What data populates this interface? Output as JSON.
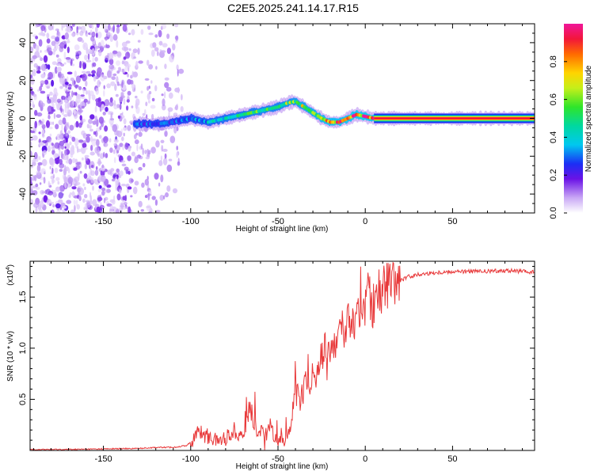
{
  "title": "C2E5.2025.241.14.17.R15",
  "chart_data": [
    {
      "type": "heatmap",
      "name": "spectrogram",
      "xlabel": "Height of straight line (km)",
      "ylabel": "Frequency (Hz)",
      "xlim": [
        -192,
        97
      ],
      "ylim": [
        -50,
        50
      ],
      "xticks": [
        -150,
        -100,
        -50,
        0,
        50
      ],
      "yticks": [
        -40,
        -20,
        0,
        20,
        40
      ],
      "colorbar": {
        "label": "Normalized spectral amplitude",
        "range": [
          0,
          1
        ],
        "ticks": [
          "0.0",
          "0.2",
          "0.4",
          "0.6",
          "0.8"
        ],
        "tick_values": [
          0,
          0.2,
          0.4,
          0.6,
          0.8
        ]
      },
      "ridge": {
        "x": [
          -130,
          -120,
          -110,
          -100,
          -90,
          -80,
          -70,
          -60,
          -50,
          -45,
          -40,
          -35,
          -30,
          -25,
          -20,
          -15,
          -10,
          -5,
          0,
          5,
          97
        ],
        "frequency_hz": [
          -3,
          -3,
          -2,
          0,
          -2,
          0,
          2,
          4,
          6,
          8,
          9,
          6,
          3,
          0,
          -2,
          -2,
          0,
          2,
          1,
          0,
          0
        ],
        "amplitude": [
          0.3,
          0.3,
          0.3,
          0.35,
          0.45,
          0.5,
          0.55,
          0.6,
          0.6,
          0.65,
          0.7,
          0.75,
          0.8,
          0.85,
          0.9,
          0.9,
          0.92,
          0.95,
          0.98,
          1.0,
          1.0
        ]
      },
      "noise_region_x": [
        -192,
        -105
      ]
    },
    {
      "type": "line",
      "name": "snr",
      "xlabel": "Height of straight line (km)",
      "ylabel": "SNR (10 * v/v)",
      "scale_note_base": "(x10",
      "scale_note_exp": "4",
      "scale_note_end": ")",
      "xlim": [
        -192,
        97
      ],
      "ylim": [
        0,
        1.85
      ],
      "xticks": [
        -150,
        -100,
        -50,
        0,
        50
      ],
      "yticks": [
        0.5,
        1.0,
        1.5
      ],
      "ytick_labels": [
        "0.5",
        "1.0",
        "1.5"
      ],
      "color": "#e8393a",
      "x": [
        -192,
        -170,
        -150,
        -130,
        -120,
        -110,
        -102,
        -98,
        -95,
        -92,
        -88,
        -85,
        -80,
        -75,
        -70,
        -66,
        -63,
        -60,
        -57,
        -54,
        -50,
        -46,
        -42,
        -40,
        -38,
        -36,
        -34,
        -32,
        -30,
        -28,
        -25,
        -22,
        -20,
        -18,
        -15,
        -12,
        -10,
        -8,
        -6,
        -4,
        -2,
        0,
        2,
        4,
        6,
        8,
        10,
        12,
        15,
        20,
        25,
        30,
        35,
        40,
        50,
        60,
        70,
        80,
        90,
        95,
        97
      ],
      "y": [
        0.01,
        0.01,
        0.015,
        0.02,
        0.03,
        0.03,
        0.05,
        0.12,
        0.2,
        0.15,
        0.12,
        0.1,
        0.12,
        0.2,
        0.15,
        0.45,
        0.22,
        0.18,
        0.15,
        0.22,
        0.1,
        0.12,
        0.25,
        0.6,
        0.45,
        0.55,
        0.7,
        0.65,
        0.8,
        0.75,
        0.95,
        1.0,
        0.9,
        1.05,
        1.15,
        1.05,
        1.25,
        1.35,
        1.2,
        1.3,
        1.45,
        1.35,
        1.6,
        1.4,
        1.55,
        1.6,
        1.55,
        1.65,
        1.62,
        1.66,
        1.7,
        1.72,
        1.73,
        1.74,
        1.75,
        1.75,
        1.75,
        1.76,
        1.75,
        1.74,
        1.75
      ]
    }
  ]
}
